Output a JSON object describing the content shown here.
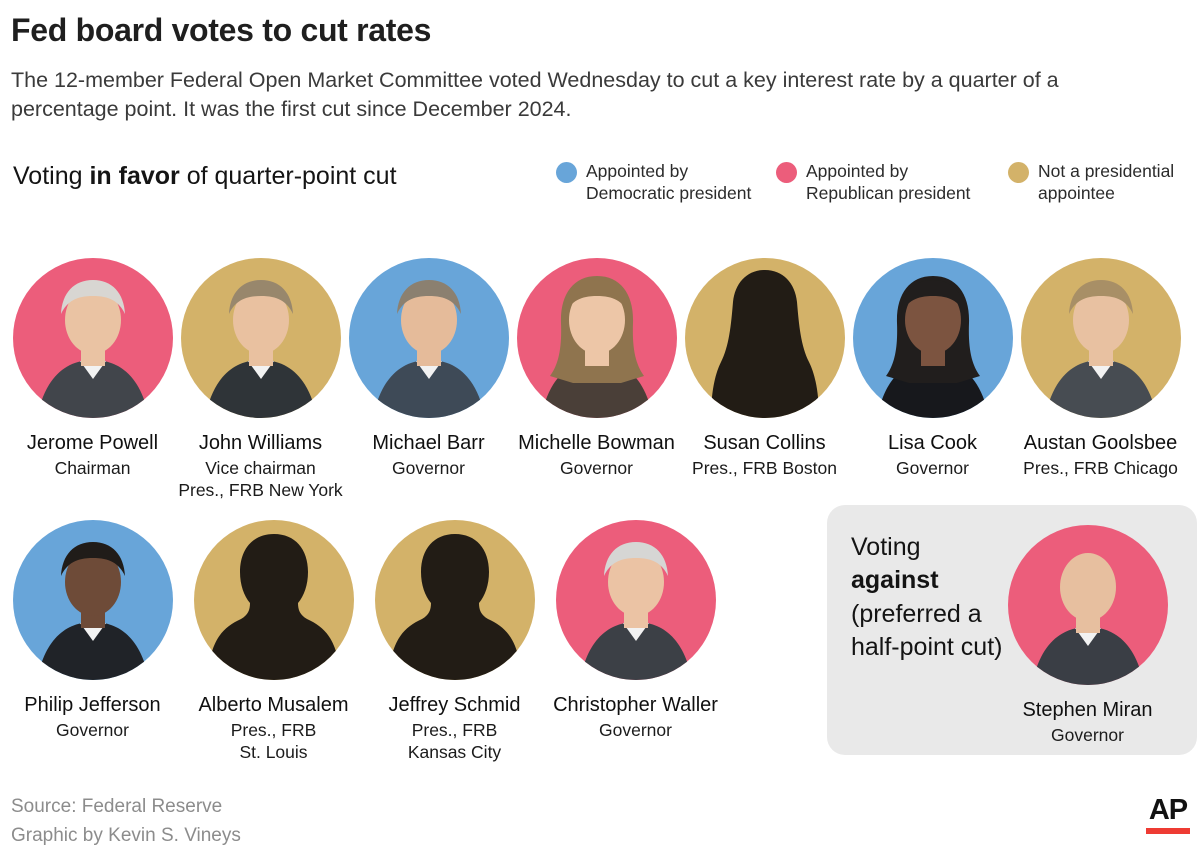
{
  "title": "Fed board votes to cut rates",
  "subtitle": "The 12-member Federal Open Market Committee voted Wednesday to cut a key interest rate by a quarter of a percentage point. It was the first cut since December 2024.",
  "favor_heading": {
    "prefix": "Voting ",
    "bold": "in favor",
    "suffix": " of quarter-point cut"
  },
  "against_heading": {
    "prefix": "Voting ",
    "bold": "against",
    "suffix": " (preferred a half-point cut)"
  },
  "legend": [
    {
      "key": "democratic",
      "label": "Appointed by Democratic president",
      "color": "#68a5d9"
    },
    {
      "key": "republican",
      "label": "Appointed by Republican president",
      "color": "#ec5d7b"
    },
    {
      "key": "none",
      "label": "Not a presidential appointee",
      "color": "#d3b269"
    }
  ],
  "colors": {
    "democratic": "#68a5d9",
    "republican": "#ec5d7b",
    "none": "#d3b269",
    "silhouette": "#221c15",
    "against_box_bg": "#e9e9e9",
    "ap_red": "#ee3b33"
  },
  "rows": {
    "favor_row1": [
      {
        "name": "Jerome Powell",
        "role_lines": [
          "Chairman"
        ],
        "category": "republican",
        "portrait": "photo",
        "appearance": {
          "skin": "#eac3a3",
          "hair": "#d8d6d2",
          "suit": "#41454b",
          "hair_type": "short"
        }
      },
      {
        "name": "John Williams",
        "role_lines": [
          "Vice chairman",
          "Pres., FRB New York"
        ],
        "category": "none",
        "portrait": "photo",
        "appearance": {
          "skin": "#e9c1a0",
          "hair": "#98876c",
          "suit": "#2f3438",
          "hair_type": "short"
        }
      },
      {
        "name": "Michael Barr",
        "role_lines": [
          "Governor"
        ],
        "category": "democratic",
        "portrait": "photo",
        "appearance": {
          "skin": "#e5bb9a",
          "hair": "#8b8070",
          "suit": "#3e4a57",
          "hair_type": "short"
        }
      },
      {
        "name": "Michelle Bowman",
        "role_lines": [
          "Governor"
        ],
        "category": "republican",
        "portrait": "photo",
        "appearance": {
          "skin": "#edc6a7",
          "hair": "#8f744e",
          "suit": "#4a3f38",
          "hair_type": "long"
        }
      },
      {
        "name": "Susan Collins",
        "role_lines": [
          "Pres., FRB Boston"
        ],
        "category": "none",
        "portrait": "silhouette-female"
      },
      {
        "name": "Lisa Cook",
        "role_lines": [
          "Governor"
        ],
        "category": "democratic",
        "portrait": "photo",
        "appearance": {
          "skin": "#7c5440",
          "hair": "#211e1d",
          "suit": "#17181c",
          "hair_type": "long"
        }
      },
      {
        "name": "Austan Goolsbee",
        "role_lines": [
          "Pres., FRB Chicago"
        ],
        "category": "none",
        "portrait": "photo",
        "appearance": {
          "skin": "#e8c1a1",
          "hair": "#a88f66",
          "suit": "#474c52",
          "hair_type": "short"
        }
      }
    ],
    "favor_row2": [
      {
        "name": "Philip Jefferson",
        "role_lines": [
          "Governor"
        ],
        "category": "democratic",
        "portrait": "photo",
        "appearance": {
          "skin": "#6e4b38",
          "hair": "#201c19",
          "suit": "#202328",
          "hair_type": "short"
        }
      },
      {
        "name": "Alberto Musalem",
        "role_lines": [
          "Pres., FRB",
          "St. Louis"
        ],
        "category": "none",
        "portrait": "silhouette-male"
      },
      {
        "name": "Jeffrey Schmid",
        "role_lines": [
          "Pres., FRB",
          "Kansas City"
        ],
        "category": "none",
        "portrait": "silhouette-male"
      },
      {
        "name": "Christopher Waller",
        "role_lines": [
          "Governor"
        ],
        "category": "republican",
        "portrait": "photo",
        "appearance": {
          "skin": "#ebc3a4",
          "hair": "#d6d6d4",
          "suit": "#3c4046",
          "hair_type": "short"
        }
      }
    ],
    "against": [
      {
        "name": "Stephen Miran",
        "role_lines": [
          "Governor"
        ],
        "category": "republican",
        "portrait": "photo",
        "appearance": {
          "skin": "#e7bf9f",
          "hair": "#2b2520",
          "suit": "#3a3e45",
          "hair_type": "bald"
        }
      }
    ]
  },
  "footer": {
    "source": "Source: Federal Reserve",
    "credit": "Graphic by Kevin S. Vineys"
  },
  "ap_logo": {
    "text": "AP"
  }
}
